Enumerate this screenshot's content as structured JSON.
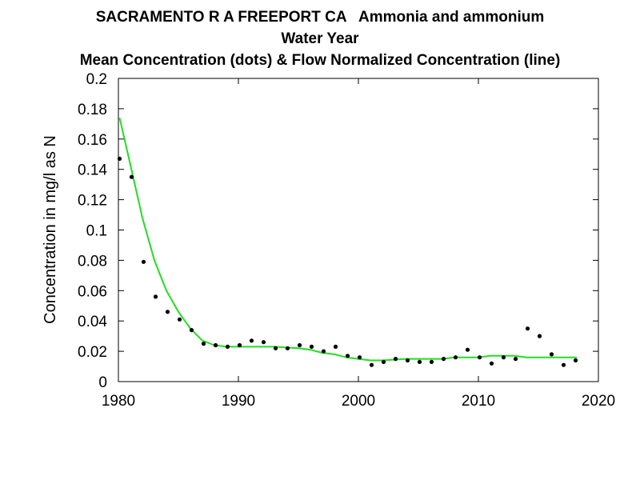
{
  "header": {
    "title_site": "SACRAMENTO R A FREEPORT CA",
    "title_param": "Ammonia and ammonium",
    "title_line2": "Water Year",
    "title_line3": "Mean Concentration (dots) & Flow Normalized Concentration (line)"
  },
  "chart_data": {
    "type": "scatter",
    "title": "SACRAMENTO R A FREEPORT CA   Ammonia and ammonium / Water Year / Mean Concentration (dots) & Flow Normalized Concentration (line)",
    "xlabel": "",
    "ylabel": "Concentration in mg/l as N",
    "xlim": [
      1980,
      2020
    ],
    "ylim": [
      0,
      0.2
    ],
    "x_ticks": [
      "1980",
      "1990",
      "2000",
      "2010",
      "2020"
    ],
    "y_ticks": [
      "0",
      "0.02",
      "0.04",
      "0.06",
      "0.08",
      "0.1",
      "0.12",
      "0.14",
      "0.16",
      "0.18",
      "0.2"
    ],
    "grid": false,
    "series": [
      {
        "kind": "points",
        "color": "#000000",
        "x": [
          1980.1,
          1981.1,
          1982.1,
          1983.1,
          1984.1,
          1985.1,
          1986.1,
          1987.1,
          1988.1,
          1989.1,
          1990.1,
          1991.1,
          1992.1,
          1993.1,
          1994.1,
          1995.1,
          1996.1,
          1997.1,
          1998.1,
          1999.1,
          2000.1,
          2001.1,
          2002.1,
          2003.1,
          2004.1,
          2005.1,
          2006.1,
          2007.1,
          2008.1,
          2009.1,
          2010.1,
          2011.1,
          2012.1,
          2013.1,
          2014.1,
          2015.1,
          2016.1,
          2017.1,
          2018.1
        ],
        "y": [
          0.147,
          0.135,
          0.079,
          0.056,
          0.046,
          0.041,
          0.034,
          0.025,
          0.024,
          0.023,
          0.024,
          0.027,
          0.026,
          0.022,
          0.022,
          0.024,
          0.023,
          0.02,
          0.023,
          0.017,
          0.016,
          0.011,
          0.013,
          0.015,
          0.014,
          0.013,
          0.013,
          0.015,
          0.016,
          0.021,
          0.016,
          0.012,
          0.016,
          0.015,
          0.035,
          0.03,
          0.018,
          0.011,
          0.014
        ]
      },
      {
        "kind": "line",
        "color": "#22dd22",
        "x": [
          1980.1,
          1981.0,
          1982.0,
          1983.0,
          1984.0,
          1985.0,
          1986.0,
          1987.0,
          1988.0,
          1989.0,
          1990.0,
          1991.0,
          1992.0,
          1993.0,
          1994.0,
          1995.0,
          1996.0,
          1997.0,
          1998.0,
          1999.0,
          2000.0,
          2001.0,
          2002.0,
          2003.0,
          2004.0,
          2005.0,
          2006.0,
          2007.0,
          2008.0,
          2009.0,
          2010.0,
          2011.0,
          2012.0,
          2013.0,
          2014.0,
          2015.0,
          2016.0,
          2017.0,
          2018.2
        ],
        "y": [
          0.174,
          0.143,
          0.108,
          0.08,
          0.06,
          0.046,
          0.035,
          0.027,
          0.024,
          0.023,
          0.023,
          0.023,
          0.023,
          0.023,
          0.0225,
          0.022,
          0.021,
          0.019,
          0.018,
          0.016,
          0.015,
          0.014,
          0.014,
          0.0145,
          0.015,
          0.015,
          0.015,
          0.015,
          0.016,
          0.016,
          0.016,
          0.017,
          0.017,
          0.017,
          0.016,
          0.016,
          0.016,
          0.016,
          0.016
        ]
      }
    ]
  }
}
